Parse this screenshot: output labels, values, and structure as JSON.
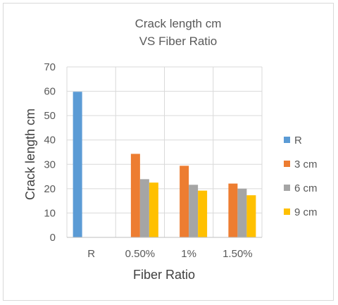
{
  "chart_data": {
    "type": "bar",
    "title_lines": [
      "Crack length cm",
      "VS Fiber Ratio"
    ],
    "xlabel": "Fiber Ratio",
    "ylabel": "Crack length cm",
    "categories": [
      "R",
      "0.50%",
      "1%",
      "1.50%"
    ],
    "ylim": [
      0,
      70
    ],
    "yticks": [
      0,
      10,
      20,
      30,
      40,
      50,
      60,
      70
    ],
    "grid": true,
    "legend_position": "right",
    "series": [
      {
        "name": "R",
        "color": "#5B9BD5",
        "values": [
          59.8,
          null,
          null,
          null
        ]
      },
      {
        "name": "3 cm",
        "color": "#ED7D31",
        "values": [
          null,
          34.3,
          29.4,
          22.1
        ]
      },
      {
        "name": "6 cm",
        "color": "#A5A5A5",
        "values": [
          null,
          23.9,
          21.6,
          20.0
        ]
      },
      {
        "name": "9 cm",
        "color": "#FFC000",
        "values": [
          null,
          22.5,
          19.2,
          17.3
        ]
      }
    ]
  }
}
